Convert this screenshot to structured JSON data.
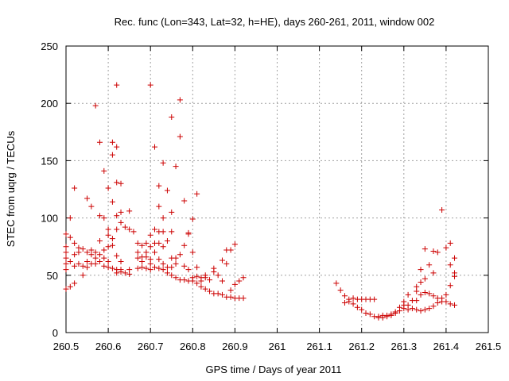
{
  "chart_data": {
    "type": "scatter",
    "title": "Rec. func (Lon=343, Lat=32, h=HE), days 260-261, 2011, window 002",
    "xlabel": "GPS time / Days of year 2011",
    "ylabel": "STEC from uqrg / TECUs",
    "xlim": [
      260.5,
      261.5
    ],
    "ylim": [
      0,
      250
    ],
    "xticks": [
      260.5,
      260.6,
      260.7,
      260.8,
      260.9,
      261,
      261.1,
      261.2,
      261.3,
      261.4,
      261.5
    ],
    "xtick_labels": [
      "260.5",
      "260.6",
      "260.7",
      "260.8",
      "260.9",
      "261",
      "261.1",
      "261.2",
      "261.3",
      "261.4",
      "261.5"
    ],
    "yticks": [
      0,
      50,
      100,
      150,
      200,
      250
    ],
    "ytick_labels": [
      "0",
      "50",
      "100",
      "150",
      "200",
      "250"
    ],
    "grid": true,
    "marker": "plus",
    "color": "#cc0000",
    "series": [
      {
        "points": [
          [
            260.5,
            86
          ],
          [
            260.5,
            75
          ],
          [
            260.5,
            70
          ],
          [
            260.5,
            65
          ],
          [
            260.5,
            60
          ],
          [
            260.5,
            55
          ],
          [
            260.5,
            38
          ],
          [
            260.51,
            100
          ],
          [
            260.51,
            83
          ],
          [
            260.51,
            62
          ],
          [
            260.51,
            40
          ],
          [
            260.52,
            126
          ],
          [
            260.52,
            78
          ],
          [
            260.52,
            68
          ],
          [
            260.52,
            58
          ],
          [
            260.52,
            43
          ],
          [
            260.53,
            74
          ],
          [
            260.53,
            70
          ],
          [
            260.53,
            60
          ],
          [
            260.54,
            73
          ],
          [
            260.54,
            58
          ],
          [
            260.54,
            50
          ],
          [
            260.55,
            117
          ],
          [
            260.55,
            70
          ],
          [
            260.55,
            62
          ],
          [
            260.55,
            57
          ],
          [
            260.56,
            110
          ],
          [
            260.56,
            72
          ],
          [
            260.56,
            68
          ],
          [
            260.56,
            60
          ],
          [
            260.57,
            198
          ],
          [
            260.57,
            70
          ],
          [
            260.57,
            65
          ],
          [
            260.57,
            60
          ],
          [
            260.58,
            166
          ],
          [
            260.58,
            102
          ],
          [
            260.58,
            80
          ],
          [
            260.58,
            68
          ],
          [
            260.58,
            62
          ],
          [
            260.59,
            141
          ],
          [
            260.59,
            100
          ],
          [
            260.59,
            72
          ],
          [
            260.59,
            65
          ],
          [
            260.59,
            58
          ],
          [
            260.6,
            126
          ],
          [
            260.6,
            90
          ],
          [
            260.6,
            85
          ],
          [
            260.6,
            75
          ],
          [
            260.6,
            62
          ],
          [
            260.6,
            57
          ],
          [
            260.61,
            155
          ],
          [
            260.61,
            166
          ],
          [
            260.61,
            114
          ],
          [
            260.61,
            82
          ],
          [
            260.61,
            76
          ],
          [
            260.61,
            56
          ],
          [
            260.62,
            216
          ],
          [
            260.62,
            162
          ],
          [
            260.62,
            131
          ],
          [
            260.62,
            102
          ],
          [
            260.62,
            90
          ],
          [
            260.62,
            67
          ],
          [
            260.62,
            55
          ],
          [
            260.62,
            52
          ],
          [
            260.63,
            130
          ],
          [
            260.63,
            105
          ],
          [
            260.63,
            96
          ],
          [
            260.63,
            62
          ],
          [
            260.63,
            55
          ],
          [
            260.63,
            53
          ],
          [
            260.64,
            92
          ],
          [
            260.64,
            52
          ],
          [
            260.65,
            106
          ],
          [
            260.65,
            90
          ],
          [
            260.65,
            55
          ],
          [
            260.65,
            51
          ],
          [
            260.66,
            88
          ],
          [
            260.67,
            78
          ],
          [
            260.67,
            70
          ],
          [
            260.67,
            65
          ],
          [
            260.67,
            56
          ],
          [
            260.68,
            76
          ],
          [
            260.68,
            66
          ],
          [
            260.68,
            62
          ],
          [
            260.68,
            57
          ],
          [
            260.69,
            78
          ],
          [
            260.69,
            70
          ],
          [
            260.69,
            66
          ],
          [
            260.69,
            56
          ],
          [
            260.7,
            216
          ],
          [
            260.7,
            85
          ],
          [
            260.7,
            75
          ],
          [
            260.7,
            64
          ],
          [
            260.7,
            60
          ],
          [
            260.7,
            55
          ],
          [
            260.71,
            162
          ],
          [
            260.71,
            90
          ],
          [
            260.71,
            78
          ],
          [
            260.71,
            70
          ],
          [
            260.71,
            57
          ],
          [
            260.72,
            128
          ],
          [
            260.72,
            110
          ],
          [
            260.72,
            88
          ],
          [
            260.72,
            78
          ],
          [
            260.72,
            64
          ],
          [
            260.72,
            56
          ],
          [
            260.73,
            148
          ],
          [
            260.73,
            100
          ],
          [
            260.73,
            88
          ],
          [
            260.73,
            75
          ],
          [
            260.73,
            60
          ],
          [
            260.73,
            55
          ],
          [
            260.74,
            124
          ],
          [
            260.74,
            80
          ],
          [
            260.74,
            57
          ],
          [
            260.74,
            52
          ],
          [
            260.75,
            188
          ],
          [
            260.75,
            105
          ],
          [
            260.75,
            88
          ],
          [
            260.75,
            65
          ],
          [
            260.75,
            57
          ],
          [
            260.75,
            50
          ],
          [
            260.76,
            145
          ],
          [
            260.76,
            65
          ],
          [
            260.76,
            60
          ],
          [
            260.76,
            48
          ],
          [
            260.77,
            203
          ],
          [
            260.77,
            171
          ],
          [
            260.77,
            68
          ],
          [
            260.77,
            46
          ],
          [
            260.78,
            115
          ],
          [
            260.78,
            76
          ],
          [
            260.78,
            58
          ],
          [
            260.78,
            46
          ],
          [
            260.79,
            87
          ],
          [
            260.79,
            86
          ],
          [
            260.79,
            55
          ],
          [
            260.79,
            45
          ],
          [
            260.8,
            99
          ],
          [
            260.8,
            70
          ],
          [
            260.8,
            48
          ],
          [
            260.8,
            45
          ],
          [
            260.81,
            121
          ],
          [
            260.81,
            57
          ],
          [
            260.81,
            49
          ],
          [
            260.81,
            43
          ],
          [
            260.82,
            48
          ],
          [
            260.82,
            45
          ],
          [
            260.82,
            40
          ],
          [
            260.83,
            50
          ],
          [
            260.83,
            48
          ],
          [
            260.83,
            38
          ],
          [
            260.84,
            46
          ],
          [
            260.84,
            36
          ],
          [
            260.85,
            56
          ],
          [
            260.85,
            53
          ],
          [
            260.85,
            34
          ],
          [
            260.86,
            50
          ],
          [
            260.86,
            34
          ],
          [
            260.87,
            63
          ],
          [
            260.87,
            45
          ],
          [
            260.87,
            33
          ],
          [
            260.88,
            72
          ],
          [
            260.88,
            60
          ],
          [
            260.88,
            31
          ],
          [
            260.89,
            72
          ],
          [
            260.89,
            37
          ],
          [
            260.89,
            31
          ],
          [
            260.9,
            77
          ],
          [
            260.9,
            42
          ],
          [
            260.9,
            30
          ],
          [
            260.91,
            45
          ],
          [
            260.91,
            30
          ],
          [
            260.92,
            48
          ],
          [
            260.92,
            30
          ],
          [
            261.14,
            43
          ],
          [
            261.15,
            37
          ],
          [
            261.16,
            32
          ],
          [
            261.16,
            26
          ],
          [
            261.17,
            29
          ],
          [
            261.17,
            27
          ],
          [
            261.18,
            30
          ],
          [
            261.18,
            25
          ],
          [
            261.19,
            29
          ],
          [
            261.19,
            22
          ],
          [
            261.2,
            29
          ],
          [
            261.2,
            20
          ],
          [
            261.21,
            29
          ],
          [
            261.21,
            17
          ],
          [
            261.22,
            29
          ],
          [
            261.22,
            16
          ],
          [
            261.23,
            29
          ],
          [
            261.23,
            14
          ],
          [
            261.24,
            14
          ],
          [
            261.24,
            13
          ],
          [
            261.25,
            15
          ],
          [
            261.25,
            13
          ],
          [
            261.26,
            15
          ],
          [
            261.26,
            14
          ],
          [
            261.27,
            16
          ],
          [
            261.27,
            15
          ],
          [
            261.28,
            18
          ],
          [
            261.28,
            17
          ],
          [
            261.29,
            22
          ],
          [
            261.29,
            19
          ],
          [
            261.3,
            27
          ],
          [
            261.3,
            24
          ],
          [
            261.3,
            21
          ],
          [
            261.31,
            33
          ],
          [
            261.31,
            24
          ],
          [
            261.31,
            20
          ],
          [
            261.32,
            28
          ],
          [
            261.32,
            21
          ],
          [
            261.33,
            40
          ],
          [
            261.33,
            36
          ],
          [
            261.33,
            28
          ],
          [
            261.33,
            20
          ],
          [
            261.34,
            55
          ],
          [
            261.34,
            44
          ],
          [
            261.34,
            33
          ],
          [
            261.34,
            19
          ],
          [
            261.35,
            73
          ],
          [
            261.35,
            47
          ],
          [
            261.35,
            35
          ],
          [
            261.35,
            20
          ],
          [
            261.36,
            59
          ],
          [
            261.36,
            34
          ],
          [
            261.36,
            21
          ],
          [
            261.37,
            71
          ],
          [
            261.37,
            52
          ],
          [
            261.37,
            32
          ],
          [
            261.37,
            23
          ],
          [
            261.38,
            70
          ],
          [
            261.38,
            30
          ],
          [
            261.38,
            26
          ],
          [
            261.39,
            107
          ],
          [
            261.39,
            30
          ],
          [
            261.39,
            27
          ],
          [
            261.4,
            74
          ],
          [
            261.4,
            33
          ],
          [
            261.4,
            27
          ],
          [
            261.41,
            78
          ],
          [
            261.41,
            59
          ],
          [
            261.41,
            41
          ],
          [
            261.41,
            25
          ],
          [
            261.42,
            65
          ],
          [
            261.42,
            52
          ],
          [
            261.42,
            49
          ],
          [
            261.42,
            24
          ]
        ]
      }
    ]
  }
}
